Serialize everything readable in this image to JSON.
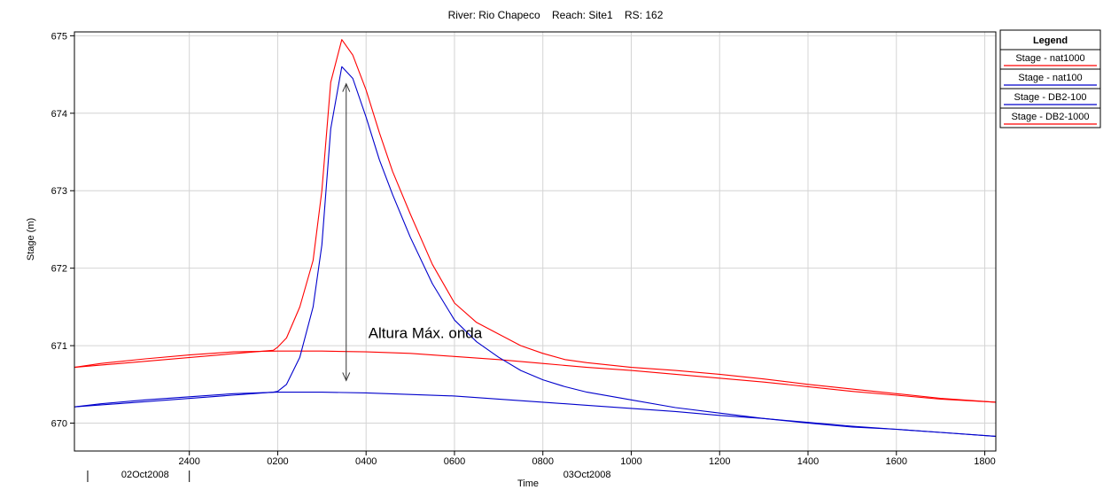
{
  "chart_data": {
    "type": "line",
    "title": "River: Rio Chapeco    Reach: Site1    RS: 162",
    "xlabel": "Time",
    "ylabel": "Stage (m)",
    "x_unit": "hours since 02Oct2008 2400",
    "xlim": [
      -2.6,
      18.25
    ],
    "ylim": [
      669.64,
      675.05
    ],
    "grid": true,
    "legend_position": "right",
    "legend_title": "Legend",
    "y_ticks": [
      670,
      671,
      672,
      673,
      674,
      675
    ],
    "y_tick_labels": [
      "670",
      "671",
      "672",
      "673",
      "674",
      "675"
    ],
    "x_ticks": [
      0,
      2,
      4,
      6,
      8,
      10,
      12,
      14,
      16,
      18
    ],
    "x_tick_labels": [
      "2400",
      "0200",
      "0400",
      "0600",
      "0800",
      "1000",
      "1200",
      "1400",
      "1600",
      "1800"
    ],
    "date_labels": [
      {
        "text": "02Oct2008",
        "x": -1.0
      },
      {
        "text": "03Oct2008",
        "x": 9.0
      }
    ],
    "date_separators": [
      -2.3,
      0.0
    ],
    "series": [
      {
        "name": "Stage - nat1000",
        "color": "#ff0000",
        "x": [
          -2.6,
          -2,
          -1,
          0,
          1,
          2,
          3,
          4,
          5,
          6,
          7,
          8,
          9,
          10,
          11,
          12,
          13,
          14,
          15,
          16,
          17,
          18.25
        ],
        "y": [
          670.72,
          670.77,
          670.83,
          670.88,
          670.92,
          670.93,
          670.93,
          670.92,
          670.9,
          670.86,
          670.82,
          670.77,
          670.72,
          670.68,
          670.63,
          670.58,
          670.53,
          670.47,
          670.41,
          670.36,
          670.31,
          670.27
        ]
      },
      {
        "name": "Stage - nat100",
        "color": "#0000cc",
        "x": [
          -2.6,
          -2,
          -1,
          0,
          1,
          2,
          3,
          4,
          5,
          6,
          7,
          8,
          9,
          10,
          11,
          12,
          13,
          14,
          15,
          16,
          17,
          18.25
        ],
        "y": [
          670.21,
          670.25,
          670.3,
          670.34,
          670.38,
          670.4,
          670.4,
          670.39,
          670.37,
          670.35,
          670.31,
          670.27,
          670.23,
          670.19,
          670.15,
          670.1,
          670.06,
          670.01,
          669.96,
          669.92,
          669.88,
          669.83
        ]
      },
      {
        "name": "Stage - DB2-100",
        "color": "#0000cc",
        "x": [
          -2.6,
          1.9,
          2.0,
          2.2,
          2.5,
          2.8,
          3.0,
          3.2,
          3.45,
          3.7,
          4.0,
          4.3,
          4.6,
          5.0,
          5.5,
          6.0,
          6.5,
          7.0,
          7.5,
          8.0,
          8.5,
          9.0,
          10.0,
          11.0,
          12.0,
          13.0,
          14.0,
          15.0,
          16.0,
          17.0,
          18.25
        ],
        "y": [
          670.21,
          670.4,
          670.41,
          670.5,
          670.85,
          671.5,
          672.3,
          673.8,
          674.6,
          674.45,
          673.95,
          673.4,
          672.95,
          672.4,
          671.8,
          671.33,
          671.05,
          670.85,
          670.68,
          670.56,
          670.47,
          670.4,
          670.3,
          670.2,
          670.13,
          670.06,
          670.0,
          669.95,
          669.92,
          669.88,
          669.83
        ]
      },
      {
        "name": "Stage - DB2-1000",
        "color": "#ff0000",
        "x": [
          -2.6,
          1.9,
          2.0,
          2.2,
          2.5,
          2.8,
          3.0,
          3.2,
          3.45,
          3.7,
          4.0,
          4.3,
          4.6,
          5.0,
          5.5,
          6.0,
          6.5,
          7.0,
          7.5,
          8.0,
          8.5,
          9.0,
          10.0,
          11.0,
          12.0,
          13.0,
          14.0,
          15.0,
          16.0,
          17.0,
          18.25
        ],
        "y": [
          670.72,
          670.94,
          670.98,
          671.1,
          671.5,
          672.1,
          673.0,
          674.4,
          674.95,
          674.75,
          674.3,
          673.75,
          673.25,
          672.7,
          672.05,
          671.55,
          671.3,
          671.15,
          671.0,
          670.9,
          670.82,
          670.78,
          670.72,
          670.68,
          670.63,
          670.57,
          670.5,
          670.44,
          670.38,
          670.32,
          670.27
        ]
      }
    ],
    "annotations": [
      {
        "text": "Altura Máx. onda",
        "x": 4.05,
        "y": 671.1
      },
      {
        "type": "double-arrow",
        "x": 3.55,
        "y_from": 674.38,
        "y_to": 670.55
      }
    ]
  }
}
